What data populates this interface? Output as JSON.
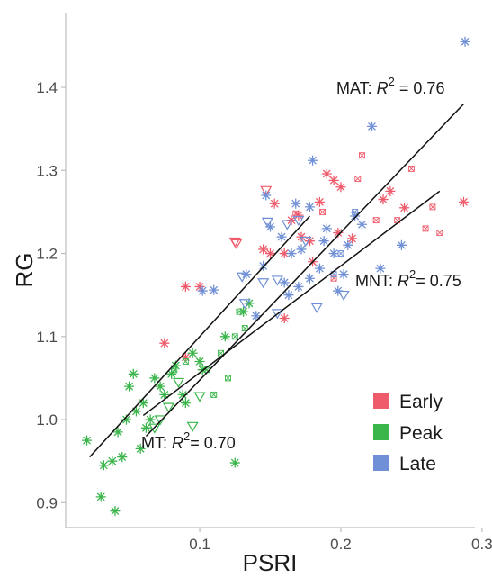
{
  "chart_data": {
    "type": "scatter",
    "xlabel": "PSRI",
    "ylabel": "RG",
    "xlim": [
      0.005,
      0.295
    ],
    "ylim": [
      0.87,
      1.49
    ],
    "x_ticks": [
      0.1,
      0.2,
      0.3
    ],
    "y_ticks": [
      0.9,
      1.0,
      1.1,
      1.2,
      1.3,
      1.4
    ],
    "x_tick_labels": [
      "0.1",
      "0.2",
      "0.3"
    ],
    "y_tick_labels": [
      "0.9",
      "1.0",
      "1.1",
      "1.2",
      "1.3",
      "1.4"
    ],
    "grid": false,
    "legend_position": "bottom-right",
    "series": [
      {
        "name": "Early",
        "color": "#ef5b6b",
        "points": [
          [
            0.075,
            1.092,
            "star"
          ],
          [
            0.09,
            1.16,
            "star"
          ],
          [
            0.1,
            1.16,
            "star"
          ],
          [
            0.09,
            1.075,
            "star"
          ],
          [
            0.125,
            1.214,
            "tri"
          ],
          [
            0.126,
            1.212,
            "tri"
          ],
          [
            0.147,
            1.276,
            "tri"
          ],
          [
            0.15,
            1.2,
            "star"
          ],
          [
            0.145,
            1.205,
            "star"
          ],
          [
            0.153,
            1.26,
            "star"
          ],
          [
            0.16,
            1.2,
            "star"
          ],
          [
            0.165,
            1.24,
            "star"
          ],
          [
            0.17,
            1.246,
            "star"
          ],
          [
            0.172,
            1.22,
            "star"
          ],
          [
            0.178,
            1.215,
            "star"
          ],
          [
            0.18,
            1.19,
            "star"
          ],
          [
            0.185,
            1.262,
            "star"
          ],
          [
            0.19,
            1.296,
            "star"
          ],
          [
            0.195,
            1.288,
            "star"
          ],
          [
            0.2,
            1.28,
            "star"
          ],
          [
            0.198,
            1.225,
            "star"
          ],
          [
            0.208,
            1.218,
            "star"
          ],
          [
            0.23,
            1.265,
            "star"
          ],
          [
            0.235,
            1.275,
            "star"
          ],
          [
            0.245,
            1.255,
            "star"
          ],
          [
            0.287,
            1.262,
            "star"
          ],
          [
            0.16,
            1.122,
            "star"
          ],
          [
            0.168,
            1.248,
            "box"
          ],
          [
            0.215,
            1.318,
            "box"
          ],
          [
            0.25,
            1.302,
            "box"
          ],
          [
            0.26,
            1.23,
            "box"
          ],
          [
            0.265,
            1.256,
            "box"
          ],
          [
            0.27,
            1.225,
            "box"
          ],
          [
            0.225,
            1.24,
            "box"
          ],
          [
            0.212,
            1.29,
            "box"
          ],
          [
            0.187,
            1.25,
            "box"
          ],
          [
            0.195,
            1.17,
            "box"
          ],
          [
            0.24,
            1.24,
            "box"
          ]
        ]
      },
      {
        "name": "Peak",
        "color": "#39b54a",
        "points": [
          [
            0.02,
            0.975,
            "star"
          ],
          [
            0.03,
            0.907,
            "star"
          ],
          [
            0.032,
            0.945,
            "star"
          ],
          [
            0.038,
            0.95,
            "star"
          ],
          [
            0.04,
            0.89,
            "star"
          ],
          [
            0.042,
            0.985,
            "star"
          ],
          [
            0.045,
            0.955,
            "star"
          ],
          [
            0.048,
            1.0,
            "star"
          ],
          [
            0.05,
            1.04,
            "star"
          ],
          [
            0.053,
            1.055,
            "star"
          ],
          [
            0.055,
            1.01,
            "star"
          ],
          [
            0.058,
            0.965,
            "star"
          ],
          [
            0.06,
            1.02,
            "star"
          ],
          [
            0.062,
            0.99,
            "star"
          ],
          [
            0.065,
            1.0,
            "star"
          ],
          [
            0.068,
            1.05,
            "star"
          ],
          [
            0.072,
            1.04,
            "star"
          ],
          [
            0.075,
            1.03,
            "star"
          ],
          [
            0.08,
            1.055,
            "star"
          ],
          [
            0.083,
            1.065,
            "star"
          ],
          [
            0.088,
            1.03,
            "star"
          ],
          [
            0.09,
            1.02,
            "star"
          ],
          [
            0.095,
            1.08,
            "star"
          ],
          [
            0.1,
            1.07,
            "star"
          ],
          [
            0.102,
            1.06,
            "star"
          ],
          [
            0.118,
            1.1,
            "star"
          ],
          [
            0.125,
            0.948,
            "star"
          ],
          [
            0.131,
            1.13,
            "star"
          ],
          [
            0.135,
            1.14,
            "star"
          ],
          [
            0.068,
            0.99,
            "tri"
          ],
          [
            0.078,
            1.015,
            "tri"
          ],
          [
            0.085,
            1.045,
            "tri"
          ],
          [
            0.095,
            0.992,
            "tri"
          ],
          [
            0.1,
            1.028,
            "tri"
          ],
          [
            0.072,
            1.0,
            "tri"
          ],
          [
            0.105,
            1.06,
            "box"
          ],
          [
            0.115,
            1.08,
            "box"
          ],
          [
            0.12,
            1.05,
            "box"
          ],
          [
            0.125,
            1.1,
            "box"
          ],
          [
            0.128,
            1.13,
            "box"
          ],
          [
            0.132,
            1.11,
            "box"
          ],
          [
            0.11,
            1.03,
            "box"
          ],
          [
            0.09,
            1.07,
            "box"
          ],
          [
            0.082,
            1.06,
            "box"
          ]
        ]
      },
      {
        "name": "Late",
        "color": "#6f8fd6",
        "points": [
          [
            0.288,
            1.455,
            "star"
          ],
          [
            0.222,
            1.353,
            "star"
          ],
          [
            0.18,
            1.312,
            "star"
          ],
          [
            0.147,
            1.27,
            "star"
          ],
          [
            0.168,
            1.26,
            "star"
          ],
          [
            0.178,
            1.256,
            "star"
          ],
          [
            0.15,
            1.232,
            "star"
          ],
          [
            0.158,
            1.22,
            "star"
          ],
          [
            0.165,
            1.2,
            "star"
          ],
          [
            0.172,
            1.205,
            "star"
          ],
          [
            0.185,
            1.182,
            "star"
          ],
          [
            0.19,
            1.23,
            "star"
          ],
          [
            0.195,
            1.2,
            "star"
          ],
          [
            0.202,
            1.175,
            "star"
          ],
          [
            0.205,
            1.21,
            "star"
          ],
          [
            0.21,
            1.245,
            "star"
          ],
          [
            0.215,
            1.235,
            "star"
          ],
          [
            0.228,
            1.182,
            "star"
          ],
          [
            0.243,
            1.21,
            "star"
          ],
          [
            0.102,
            1.155,
            "star"
          ],
          [
            0.11,
            1.156,
            "star"
          ],
          [
            0.133,
            1.175,
            "star"
          ],
          [
            0.145,
            1.185,
            "star"
          ],
          [
            0.16,
            1.165,
            "star"
          ],
          [
            0.163,
            1.15,
            "star"
          ],
          [
            0.17,
            1.16,
            "star"
          ],
          [
            0.178,
            1.17,
            "star"
          ],
          [
            0.188,
            1.215,
            "star"
          ],
          [
            0.198,
            1.155,
            "star"
          ],
          [
            0.14,
            1.125,
            "star"
          ],
          [
            0.155,
            1.168,
            "tri"
          ],
          [
            0.145,
            1.165,
            "tri"
          ],
          [
            0.132,
            1.14,
            "tri"
          ],
          [
            0.175,
            1.215,
            "tri"
          ],
          [
            0.148,
            1.238,
            "tri"
          ],
          [
            0.162,
            1.235,
            "tri"
          ],
          [
            0.17,
            1.24,
            "tri"
          ],
          [
            0.155,
            1.128,
            "tri"
          ],
          [
            0.202,
            1.15,
            "tri"
          ],
          [
            0.183,
            1.135,
            "tri"
          ],
          [
            0.13,
            1.172,
            "tri"
          ],
          [
            0.21,
            1.25,
            "box"
          ],
          [
            0.2,
            1.2,
            "box"
          ],
          [
            0.195,
            1.175,
            "box"
          ]
        ]
      }
    ],
    "fit_lines": [
      {
        "label_prefix": "MT: ",
        "r2_value": "0.70",
        "x": [
          0.022,
          0.178
        ],
        "y": [
          0.955,
          1.245
        ]
      },
      {
        "label_prefix": "MNT: ",
        "r2_value": "0.75",
        "x": [
          0.06,
          0.27
        ],
        "y": [
          1.005,
          1.275
        ]
      },
      {
        "label_prefix": "MAT: ",
        "r2_value": "0.76",
        "x": [
          0.062,
          0.287
        ],
        "y": [
          0.98,
          1.38
        ]
      }
    ]
  }
}
